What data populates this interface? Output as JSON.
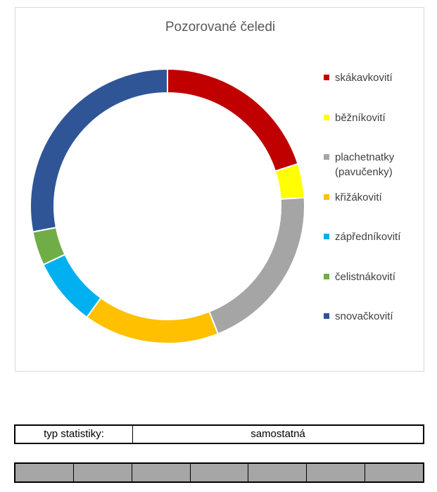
{
  "chart_data": {
    "type": "pie",
    "style": "donut",
    "title": "Pozorované čeledi",
    "legend_position": "right",
    "categories": [
      "skákavkovití",
      "běžníkovití",
      "plachetnatky (pavučenky)",
      "křižákovití",
      "zápředníkovití",
      "čelistnákovití",
      "snovačkovití"
    ],
    "values": [
      20,
      4,
      20,
      16,
      8,
      4,
      28
    ],
    "colors": [
      "#c00000",
      "#ffff00",
      "#a5a5a5",
      "#ffc000",
      "#00b0f0",
      "#70ad47",
      "#2f5597"
    ]
  },
  "stats": {
    "label": "typ statistiky:",
    "value": "samostatná"
  }
}
